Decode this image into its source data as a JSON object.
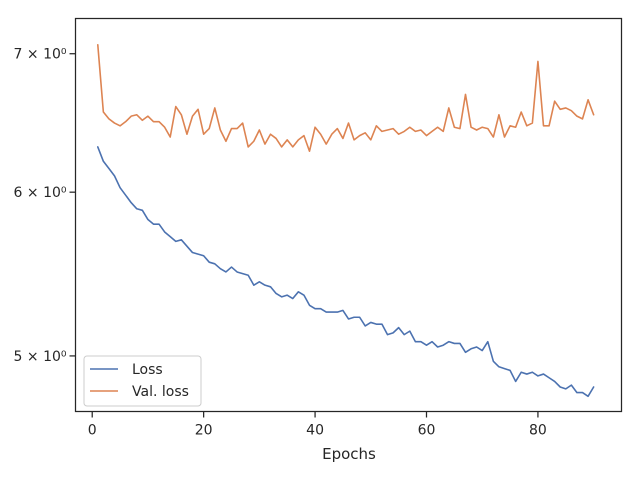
{
  "chart_data": {
    "type": "line",
    "xlabel": "Epochs",
    "ylabel": "",
    "xlim": [
      -3,
      95
    ],
    "ylim": [
      4.7,
      7.28
    ],
    "yscale": "log",
    "grid": false,
    "legend": "bottom-left",
    "x_ticks": [
      {
        "value": 0,
        "label": "0"
      },
      {
        "value": 20,
        "label": "20"
      },
      {
        "value": 40,
        "label": "40"
      },
      {
        "value": 60,
        "label": "60"
      },
      {
        "value": 80,
        "label": "80"
      }
    ],
    "y_ticks": [
      {
        "value": 5,
        "label": "5 × 10⁰"
      },
      {
        "value": 6,
        "label": "6 × 10⁰"
      },
      {
        "value": 7,
        "label": "7 × 10⁰"
      }
    ],
    "x": [
      1,
      2,
      3,
      4,
      5,
      6,
      7,
      8,
      9,
      10,
      11,
      12,
      13,
      14,
      15,
      16,
      17,
      18,
      19,
      20,
      21,
      22,
      23,
      24,
      25,
      26,
      27,
      28,
      29,
      30,
      31,
      32,
      33,
      34,
      35,
      36,
      37,
      38,
      39,
      40,
      41,
      42,
      43,
      44,
      45,
      46,
      47,
      48,
      49,
      50,
      51,
      52,
      53,
      54,
      55,
      56,
      57,
      58,
      59,
      60,
      61,
      62,
      63,
      64,
      65,
      66,
      67,
      68,
      69,
      70,
      71,
      72,
      73,
      74,
      75,
      76,
      77,
      78,
      79,
      80,
      81,
      82,
      83,
      84,
      85,
      86,
      87,
      88,
      89,
      90
    ],
    "series": [
      {
        "name": "Loss",
        "color": "#4c72b0",
        "values": [
          6.31,
          6.21,
          6.16,
          6.11,
          6.03,
          5.98,
          5.93,
          5.89,
          5.88,
          5.82,
          5.79,
          5.79,
          5.74,
          5.71,
          5.68,
          5.69,
          5.65,
          5.61,
          5.6,
          5.59,
          5.55,
          5.54,
          5.51,
          5.49,
          5.52,
          5.49,
          5.48,
          5.47,
          5.41,
          5.43,
          5.41,
          5.4,
          5.36,
          5.34,
          5.35,
          5.33,
          5.37,
          5.35,
          5.29,
          5.27,
          5.27,
          5.25,
          5.25,
          5.25,
          5.26,
          5.21,
          5.22,
          5.22,
          5.17,
          5.19,
          5.18,
          5.18,
          5.12,
          5.13,
          5.16,
          5.12,
          5.14,
          5.08,
          5.08,
          5.06,
          5.08,
          5.05,
          5.06,
          5.08,
          5.07,
          5.07,
          5.02,
          5.04,
          5.05,
          5.03,
          5.08,
          4.97,
          4.94,
          4.93,
          4.92,
          4.86,
          4.91,
          4.9,
          4.91,
          4.89,
          4.9,
          4.88,
          4.86,
          4.83,
          4.82,
          4.84,
          4.8,
          4.8,
          4.78,
          4.83
        ]
      },
      {
        "name": "Val. loss",
        "color": "#dd8452",
        "values": [
          7.07,
          6.56,
          6.51,
          6.48,
          6.46,
          6.49,
          6.53,
          6.54,
          6.5,
          6.53,
          6.49,
          6.49,
          6.45,
          6.38,
          6.6,
          6.54,
          6.4,
          6.53,
          6.58,
          6.4,
          6.44,
          6.59,
          6.43,
          6.35,
          6.44,
          6.44,
          6.48,
          6.31,
          6.35,
          6.43,
          6.33,
          6.4,
          6.37,
          6.31,
          6.36,
          6.31,
          6.36,
          6.39,
          6.28,
          6.45,
          6.4,
          6.33,
          6.4,
          6.44,
          6.37,
          6.48,
          6.36,
          6.39,
          6.41,
          6.36,
          6.46,
          6.42,
          6.43,
          6.44,
          6.4,
          6.42,
          6.45,
          6.42,
          6.43,
          6.39,
          6.42,
          6.45,
          6.42,
          6.59,
          6.45,
          6.44,
          6.69,
          6.45,
          6.43,
          6.45,
          6.44,
          6.38,
          6.54,
          6.38,
          6.46,
          6.45,
          6.56,
          6.46,
          6.48,
          6.94,
          6.46,
          6.46,
          6.64,
          6.58,
          6.59,
          6.57,
          6.53,
          6.51,
          6.65,
          6.54
        ]
      }
    ]
  }
}
